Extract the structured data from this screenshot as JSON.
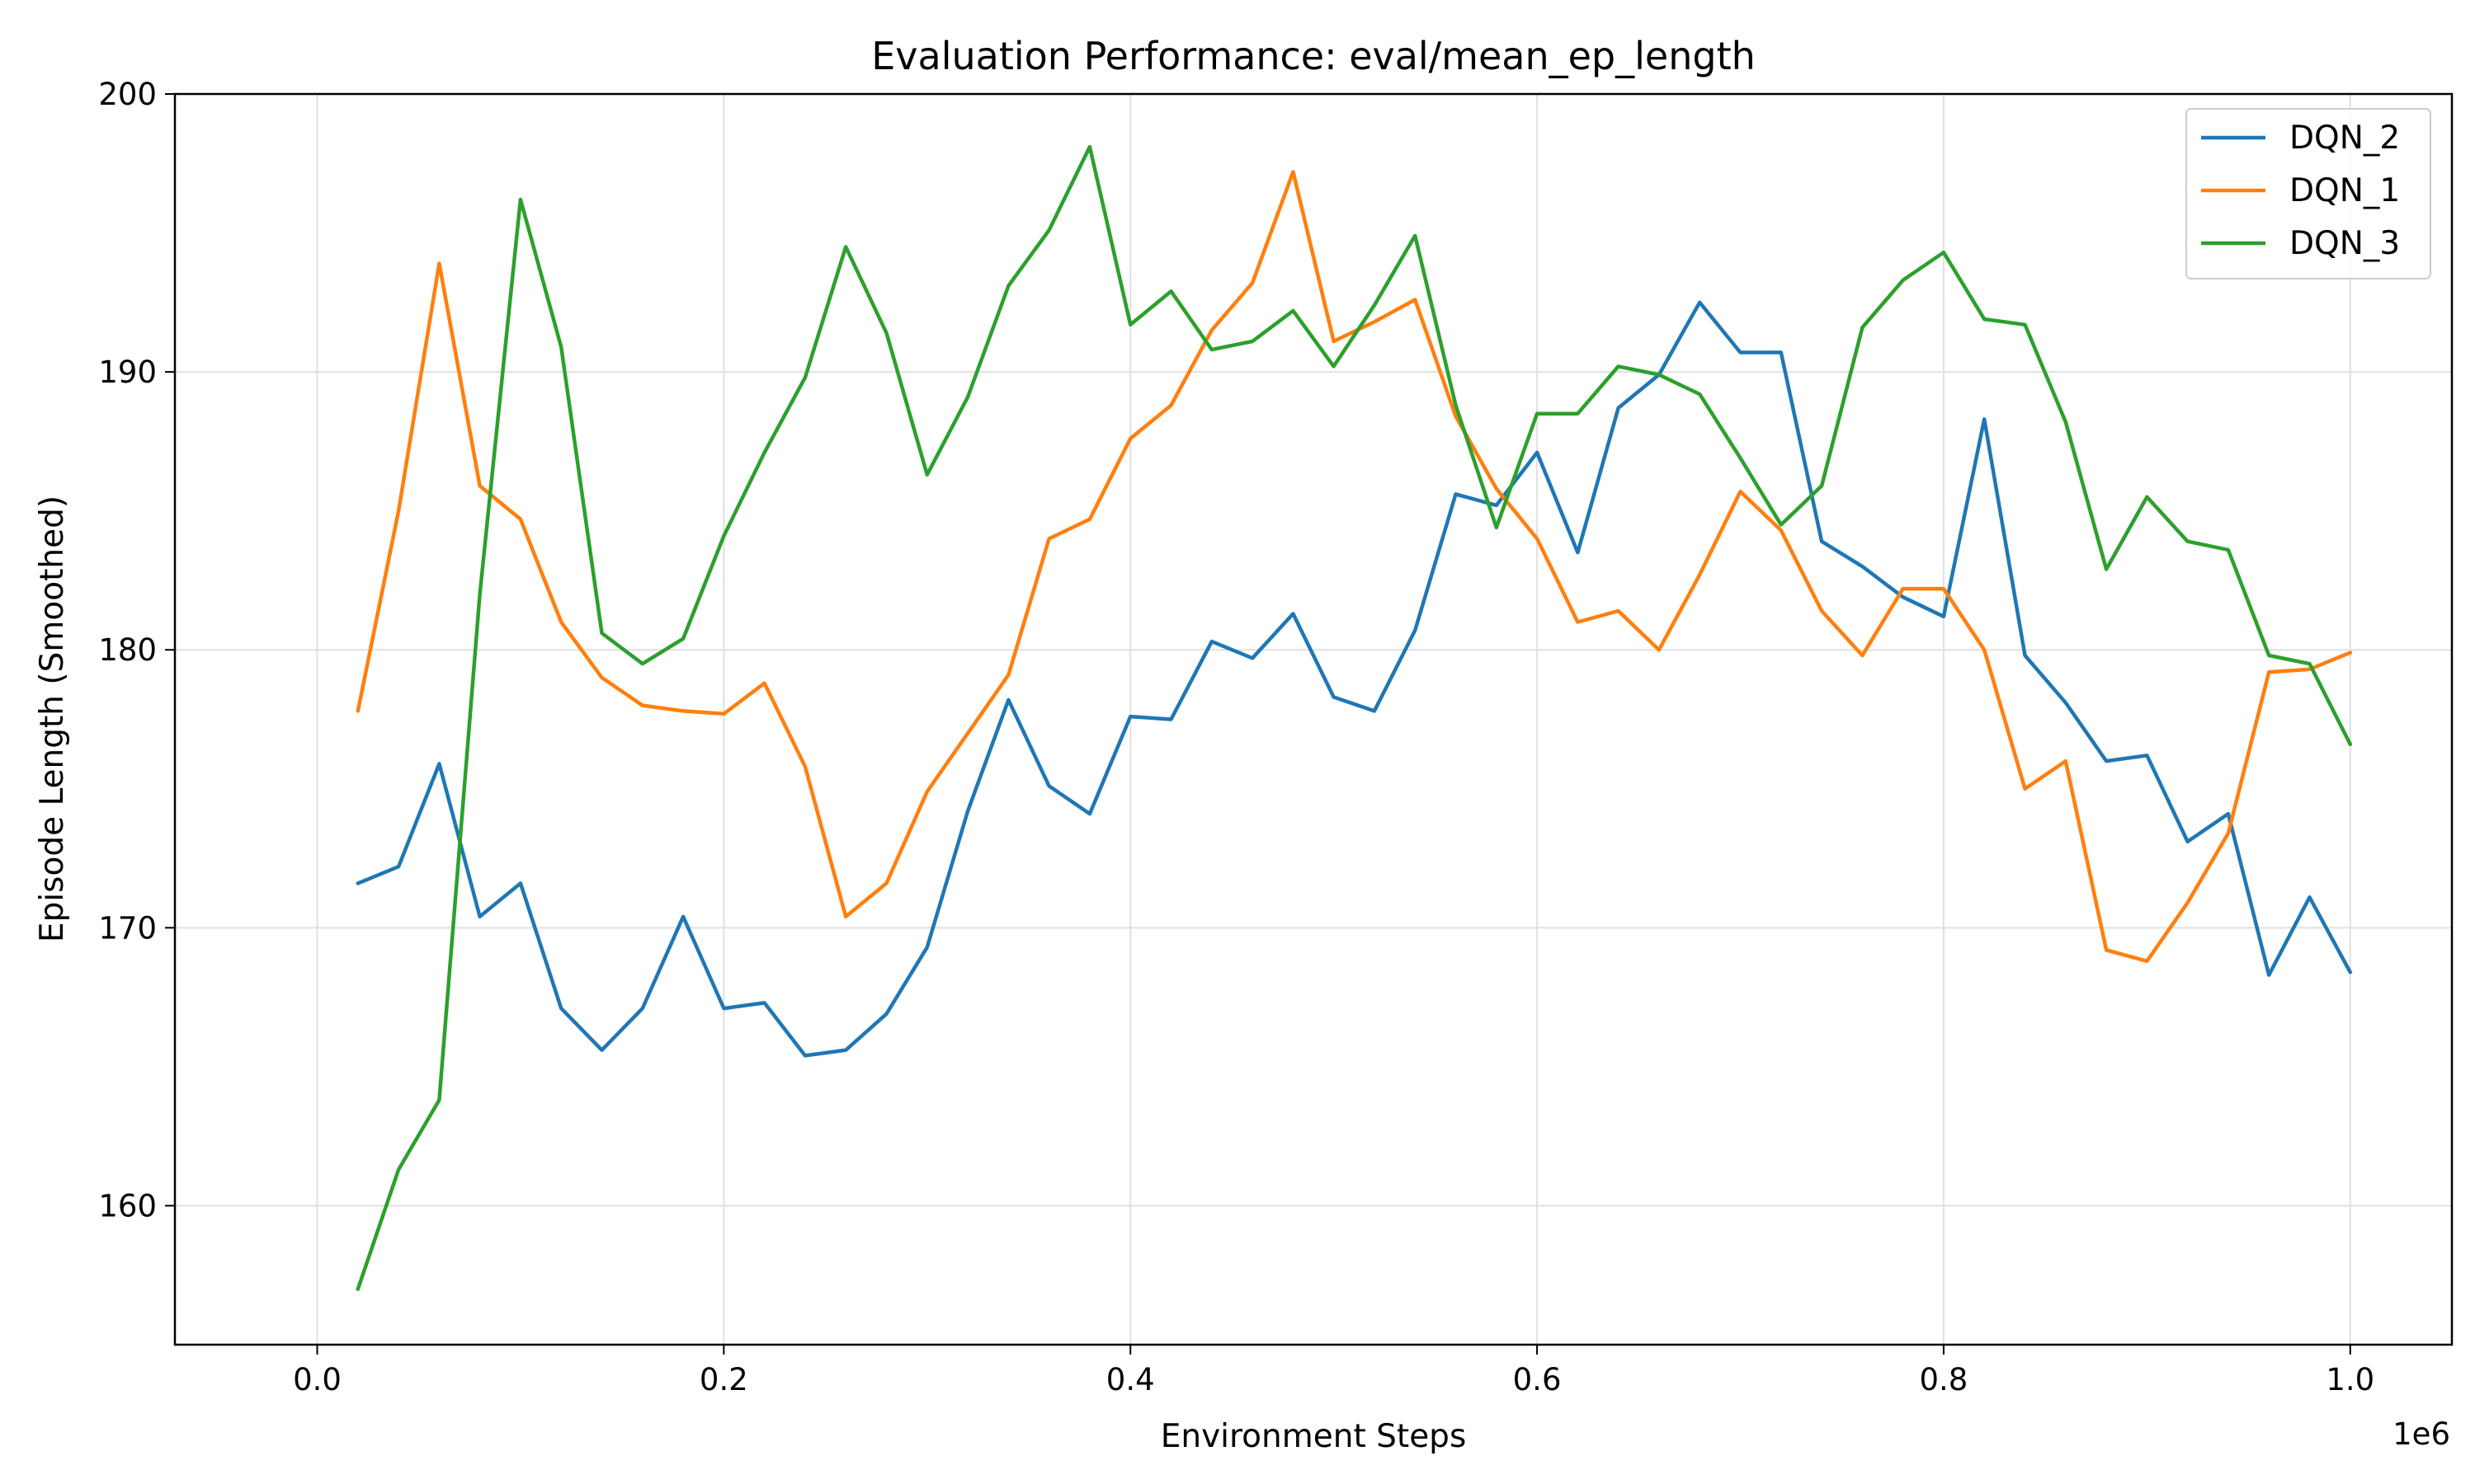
{
  "chart_data": {
    "type": "line",
    "title": "Evaluation Performance: eval/mean_ep_length",
    "xlabel": "Environment Steps",
    "ylabel": "Episode Length (Smoothed)",
    "x_offset_label": "1e6",
    "xlim": [
      -0.07,
      1.05
    ],
    "ylim": [
      155,
      200
    ],
    "xticks": [
      0.0,
      0.2,
      0.4,
      0.6,
      0.8,
      1.0
    ],
    "xtick_labels": [
      "0.0",
      "0.2",
      "0.4",
      "0.6",
      "0.8",
      "1.0"
    ],
    "yticks": [
      160,
      170,
      180,
      190,
      200
    ],
    "ytick_labels": [
      "160",
      "170",
      "180",
      "190",
      "200"
    ],
    "grid": true,
    "legend_position": "top-right",
    "x": [
      0.02,
      0.04,
      0.06,
      0.08,
      0.1,
      0.12,
      0.14,
      0.16,
      0.18,
      0.2,
      0.22,
      0.24,
      0.26,
      0.28,
      0.3,
      0.32,
      0.34,
      0.36,
      0.38,
      0.4,
      0.42,
      0.44,
      0.46,
      0.48,
      0.5,
      0.52,
      0.54,
      0.56,
      0.58,
      0.6,
      0.62,
      0.64,
      0.66,
      0.68,
      0.7,
      0.72,
      0.74,
      0.76,
      0.78,
      0.8,
      0.82,
      0.84,
      0.86,
      0.88,
      0.9,
      0.92,
      0.94,
      0.96,
      0.98,
      1.0
    ],
    "series": [
      {
        "name": "DQN_2",
        "color": "#1f77b4",
        "values": [
          171.6,
          172.2,
          175.9,
          170.4,
          171.6,
          167.1,
          165.6,
          167.1,
          170.4,
          167.1,
          167.3,
          165.4,
          165.6,
          166.9,
          169.3,
          174.2,
          178.2,
          175.1,
          174.1,
          177.6,
          177.5,
          180.3,
          179.7,
          181.3,
          178.3,
          177.8,
          180.7,
          185.6,
          185.2,
          187.1,
          183.5,
          188.7,
          189.9,
          192.5,
          190.7,
          190.7,
          183.9,
          183.0,
          181.9,
          181.2,
          188.3,
          179.8,
          178.1,
          176.0,
          176.2,
          173.1,
          174.1,
          168.3,
          171.1,
          168.4
        ]
      },
      {
        "name": "DQN_1",
        "color": "#ff7f0e",
        "values": [
          177.8,
          185.0,
          193.9,
          185.9,
          184.7,
          181.0,
          179.0,
          178.0,
          177.8,
          177.7,
          178.8,
          175.8,
          170.4,
          171.6,
          174.9,
          177.0,
          179.1,
          184.0,
          184.7,
          187.6,
          188.8,
          191.5,
          193.2,
          197.2,
          191.1,
          191.8,
          192.6,
          188.4,
          185.8,
          184.0,
          181.0,
          181.4,
          180.0,
          182.7,
          185.7,
          184.3,
          181.4,
          179.8,
          182.2,
          182.2,
          180.0,
          175.0,
          176.0,
          169.2,
          168.8,
          170.9,
          173.4,
          179.2,
          179.3,
          179.9
        ]
      },
      {
        "name": "DQN_3",
        "color": "#2ca02c",
        "values": [
          157.0,
          161.3,
          163.8,
          182.0,
          196.2,
          190.9,
          180.6,
          179.5,
          180.4,
          184.1,
          187.1,
          189.8,
          194.5,
          191.4,
          186.3,
          189.1,
          193.1,
          195.1,
          198.1,
          191.7,
          192.9,
          190.8,
          191.1,
          192.2,
          190.2,
          192.4,
          194.9,
          188.8,
          184.4,
          188.5,
          188.5,
          190.2,
          189.9,
          189.2,
          186.9,
          184.5,
          185.9,
          191.6,
          193.3,
          194.3,
          191.9,
          191.7,
          188.2,
          182.9,
          185.5,
          183.9,
          183.6,
          179.8,
          179.5,
          176.6
        ]
      }
    ]
  }
}
